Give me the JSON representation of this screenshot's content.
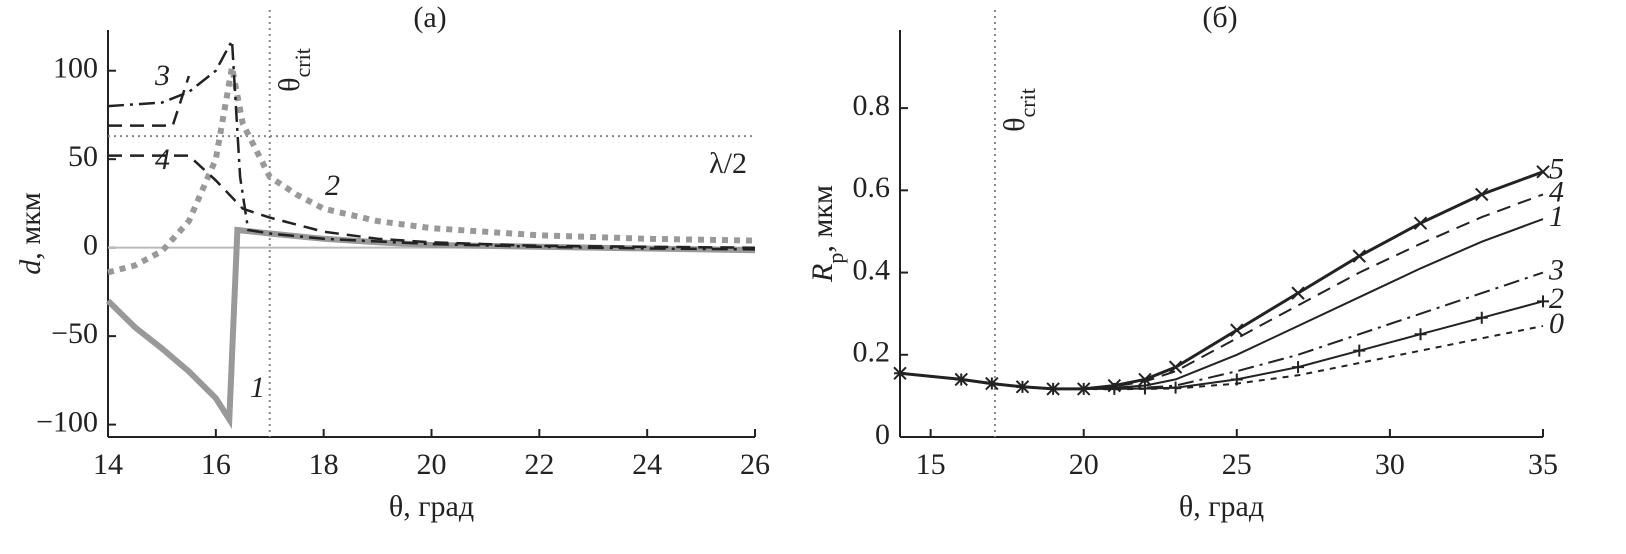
{
  "chart_data": [
    {
      "type": "line",
      "title": "(a)",
      "xlabel": [
        {
          "text": "θ, град"
        }
      ],
      "ylabel": [
        {
          "text": "d",
          "style": "italic"
        },
        {
          "text": ", мкм"
        }
      ],
      "xlim": [
        14,
        26
      ],
      "xticks": [
        14,
        16,
        18,
        20,
        22,
        24,
        26
      ],
      "ylim": [
        -107,
        123
      ],
      "yticks": [
        {
          "value": -100,
          "label": "−100"
        },
        {
          "value": -50,
          "label": "−50"
        },
        0,
        50,
        100
      ],
      "reference_lines": [
        {
          "axis": "y",
          "value": 0,
          "color": "#bbbbbb"
        },
        {
          "axis": "y",
          "value": 63,
          "color": "#888888",
          "label": "λ/2"
        },
        {
          "axis": "x",
          "value": 17,
          "color": "#888888",
          "label": {
            "text": "θ",
            "sub": "crit"
          }
        }
      ],
      "series": [
        {
          "name": "1",
          "color": "#999999",
          "width": 6,
          "dash": "solid",
          "x": [
            14,
            14.5,
            15,
            15.5,
            16,
            16.25,
            16.4,
            17,
            18,
            19,
            20,
            22,
            24,
            26
          ],
          "values": [
            -30,
            -45,
            -57,
            -70,
            -85,
            -97,
            10,
            8,
            5,
            3,
            1.5,
            0.5,
            -0.5,
            -1.5
          ]
        },
        {
          "name": "2",
          "color": "#999999",
          "width": 6,
          "dash": "dotted",
          "x": [
            14,
            14.5,
            15,
            15.5,
            16,
            16.3,
            16.5,
            17,
            17.5,
            18,
            19,
            20,
            22,
            24,
            26
          ],
          "values": [
            -14,
            -10,
            -2,
            15,
            50,
            102,
            70,
            40,
            30,
            22,
            15,
            11,
            7,
            5,
            4
          ]
        },
        {
          "name": "3",
          "color": "#222222",
          "width": 2.5,
          "dash": "dashdot",
          "x": [
            14,
            15,
            15.5,
            16,
            16.3,
            16.45,
            16.6,
            17,
            18,
            20,
            22,
            24,
            26
          ],
          "values": [
            80,
            82,
            88,
            100,
            117,
            40,
            10,
            8,
            5,
            2,
            0.5,
            -0.5,
            -1
          ]
        },
        {
          "name": "4",
          "color": "#222222",
          "width": 2.5,
          "dash": "dashed",
          "x": [
            14,
            15.2,
            15.5,
            15.6,
            14,
            15.5,
            16,
            16.5,
            17,
            18,
            19,
            20,
            22,
            26
          ],
          "values": [
            69,
            69,
            97,
            null,
            52,
            52,
            38,
            22,
            17,
            9,
            5,
            3,
            1,
            0
          ]
        }
      ]
    },
    {
      "type": "line",
      "title": "(б)",
      "xlabel": [
        {
          "text": "θ, град"
        }
      ],
      "ylabel": [
        {
          "text": "R",
          "style": "italic"
        },
        {
          "text": "p",
          "style": "sub"
        },
        {
          "text": ", мкм"
        }
      ],
      "xlim": [
        14,
        35
      ],
      "xticks": [
        15,
        20,
        25,
        30,
        35
      ],
      "ylim": [
        0,
        0.99
      ],
      "yticks": [
        0,
        0.2,
        0.4,
        0.6,
        0.8
      ],
      "reference_lines": [
        {
          "axis": "x",
          "value": 17.1,
          "color": "#888888",
          "label": {
            "text": "θ",
            "sub": "crit"
          }
        }
      ],
      "x": [
        14,
        16,
        17,
        18,
        19,
        20,
        21,
        22,
        23,
        25,
        27,
        29,
        31,
        33,
        35
      ],
      "series": [
        {
          "name": "5",
          "color": "#222222",
          "width": 3,
          "dash": "solid",
          "marker": "x",
          "values": [
            0.155,
            0.14,
            0.13,
            0.122,
            0.117,
            0.117,
            0.125,
            0.14,
            0.17,
            0.26,
            0.35,
            0.44,
            0.52,
            0.59,
            0.645
          ]
        },
        {
          "name": "4",
          "color": "#222222",
          "width": 2,
          "dash": "dashed",
          "values": [
            0.155,
            0.14,
            0.13,
            0.122,
            0.117,
            0.117,
            0.123,
            0.135,
            0.16,
            0.24,
            0.32,
            0.4,
            0.47,
            0.535,
            0.59
          ]
        },
        {
          "name": "1",
          "color": "#222222",
          "width": 2,
          "dash": "solid",
          "values": [
            0.155,
            0.14,
            0.13,
            0.122,
            0.117,
            0.117,
            0.12,
            0.125,
            0.14,
            0.2,
            0.27,
            0.34,
            0.41,
            0.475,
            0.53
          ]
        },
        {
          "name": "3",
          "color": "#222222",
          "width": 2,
          "dash": "dashdot",
          "values": [
            0.155,
            0.14,
            0.13,
            0.122,
            0.117,
            0.117,
            0.118,
            0.12,
            0.125,
            0.16,
            0.2,
            0.25,
            0.3,
            0.35,
            0.4
          ]
        },
        {
          "name": "2",
          "color": "#222222",
          "width": 2,
          "dash": "solid",
          "marker": "+",
          "values": [
            0.155,
            0.14,
            0.13,
            0.122,
            0.117,
            0.117,
            0.117,
            0.118,
            0.12,
            0.14,
            0.17,
            0.21,
            0.25,
            0.29,
            0.33
          ]
        },
        {
          "name": "0",
          "color": "#222222",
          "width": 2,
          "dash": "dotted",
          "values": [
            0.155,
            0.14,
            0.13,
            0.122,
            0.117,
            0.117,
            0.116,
            0.117,
            0.118,
            0.13,
            0.15,
            0.18,
            0.21,
            0.24,
            0.27
          ]
        }
      ]
    }
  ]
}
